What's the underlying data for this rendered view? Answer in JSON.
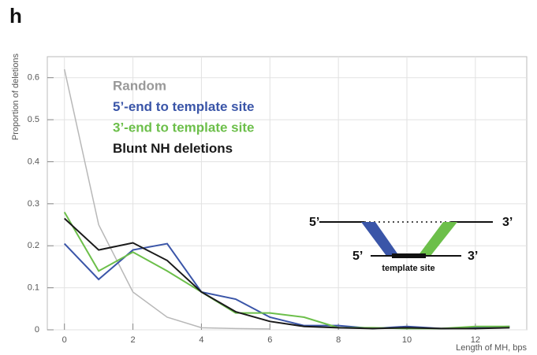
{
  "chart_data": {
    "type": "line",
    "panel_label": "h",
    "x_label": "Length of MH, bps",
    "y_label": "Proportion of deletions",
    "x": [
      0,
      1,
      2,
      3,
      4,
      5,
      6,
      7,
      8,
      9,
      10,
      11,
      12,
      13
    ],
    "xlim": [
      -0.5,
      13.5
    ],
    "xticks": [
      0,
      2,
      4,
      6,
      8,
      10,
      12
    ],
    "ylim": [
      0,
      0.65
    ],
    "yticks": [
      0,
      0.1,
      0.2,
      0.3,
      0.4,
      0.5,
      0.6
    ],
    "grid": true,
    "legend": "upper left",
    "series": [
      {
        "name": "Random",
        "color": "#b8b8b8",
        "values": [
          0.62,
          0.25,
          0.09,
          0.03,
          0.005,
          0.003,
          0.002,
          null,
          null,
          null,
          null,
          null,
          null,
          null
        ]
      },
      {
        "name": "5’-end to template site",
        "color": "#3a55a8",
        "values": [
          0.205,
          0.12,
          0.19,
          0.205,
          0.09,
          0.073,
          0.03,
          0.01,
          0.01,
          0.003,
          0.008,
          0.003,
          0.005,
          0.008
        ]
      },
      {
        "name": "3’-end to template site",
        "color": "#6cbf4a",
        "values": [
          0.28,
          0.14,
          0.185,
          0.14,
          0.09,
          0.04,
          0.04,
          0.03,
          0.005,
          0.005,
          0.003,
          0.003,
          0.008,
          0.008
        ]
      },
      {
        "name": "Blunt NH deletions",
        "color": "#1a1a1a",
        "values": [
          0.265,
          0.19,
          0.207,
          0.165,
          0.09,
          0.043,
          0.02,
          0.008,
          0.005,
          0.003,
          0.005,
          0.003,
          0.003,
          0.005
        ]
      }
    ],
    "diagram": {
      "top_left": "5’",
      "top_right": "3’",
      "bottom_left": "5’",
      "bottom_right": "3’",
      "site": "template site"
    }
  }
}
